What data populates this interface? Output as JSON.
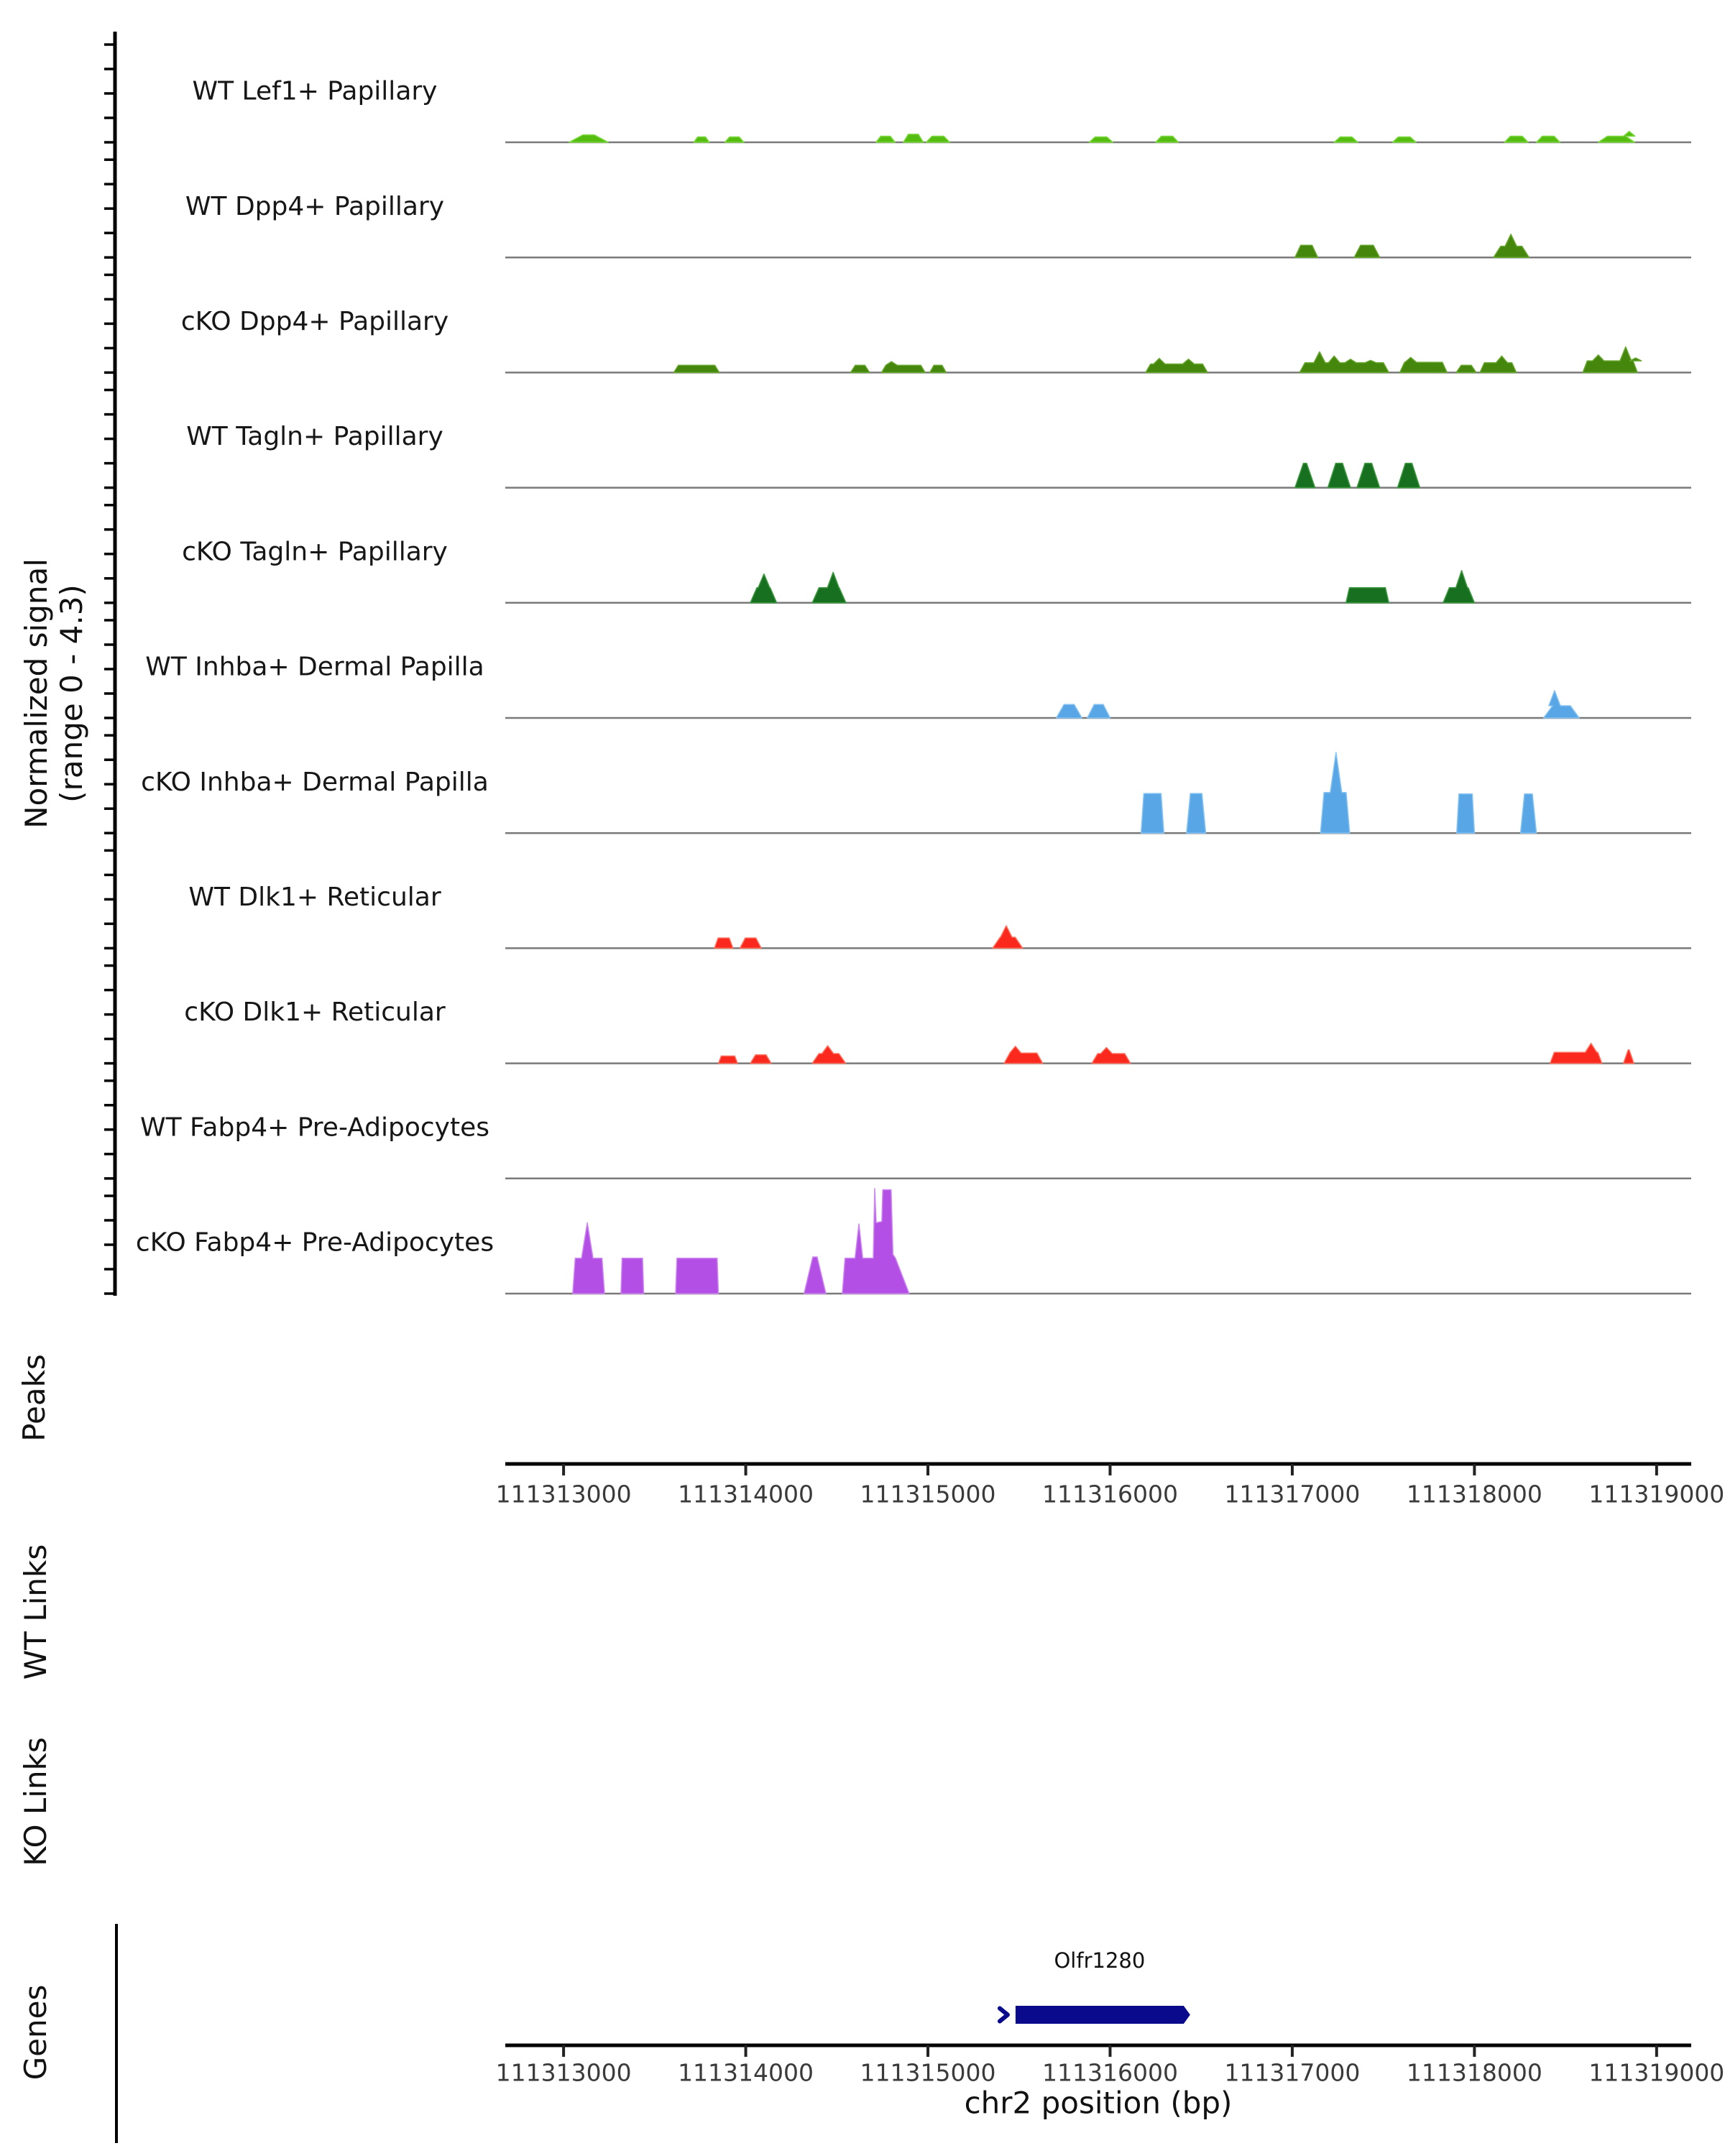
{
  "figure": {
    "y_axis_label_line1": "Normalized signal",
    "y_axis_label_line2": "(range 0 - 4.3)",
    "sections": {
      "peaks": "Peaks",
      "wt_links": "WT Links",
      "ko_links": "KO Links",
      "genes": "Genes"
    }
  },
  "chart_data": {
    "type": "area",
    "title": "",
    "xlabel": "chr2 position (bp)",
    "ylabel": "Normalized signal (range 0 - 4.3)",
    "chromosome": "chr2",
    "x_range_bp": [
      111312680,
      111319190
    ],
    "y_range_per_track": [
      0,
      4.3
    ],
    "x_ticks": [
      111313000,
      111314000,
      111315000,
      111316000,
      111317000,
      111318000,
      111319000
    ],
    "y_ticks_per_track": [
      0,
      1,
      2,
      3,
      4
    ],
    "grid": false,
    "tracks": [
      {
        "label": "WT Lef1+ Papillary",
        "color": "#55bd0f",
        "edge": "#7ed943",
        "peaks": [
          {
            "s": 111313030,
            "e": 111313245,
            "h": 0.3,
            "inset": 0.35
          },
          {
            "s": 111313715,
            "e": 111313800,
            "h": 0.22
          },
          {
            "s": 111313885,
            "e": 111313990,
            "h": 0.22
          },
          {
            "s": 111314715,
            "e": 111314820,
            "h": 0.25
          },
          {
            "s": 111314865,
            "e": 111314975,
            "h": 0.33
          },
          {
            "s": 111314990,
            "e": 111315120,
            "h": 0.25
          },
          {
            "s": 111315885,
            "e": 111316015,
            "h": 0.22
          },
          {
            "s": 111316250,
            "e": 111316375,
            "h": 0.25
          },
          {
            "s": 111317230,
            "e": 111317360,
            "h": 0.22
          },
          {
            "s": 111317550,
            "e": 111317680,
            "h": 0.22
          },
          {
            "s": 111318165,
            "e": 111318295,
            "h": 0.25
          },
          {
            "s": 111318340,
            "e": 111318470,
            "h": 0.25
          },
          {
            "s": 111318680,
            "e": 111318880,
            "h": 0.25,
            "spikes": [
              [
                111318850,
                0.45
              ]
            ]
          }
        ]
      },
      {
        "label": "WT Dpp4+ Papillary",
        "color": "#45870d",
        "edge": "#69a832",
        "peaks": [
          {
            "s": 111317015,
            "e": 111317140,
            "h": 0.5
          },
          {
            "s": 111317340,
            "e": 111317480,
            "h": 0.5
          },
          {
            "s": 111318105,
            "e": 111318300,
            "h": 0.46,
            "inset": 0.2,
            "spikes": [
              [
                111318200,
                0.95
              ]
            ]
          }
        ]
      },
      {
        "label": "cKO Dpp4+ Papillary",
        "color": "#45870d",
        "edge": "#69a832",
        "peaks": [
          {
            "s": 111313605,
            "e": 111313855,
            "h": 0.3,
            "inset": 0.1
          },
          {
            "s": 111314575,
            "e": 111314680,
            "h": 0.3
          },
          {
            "s": 111314745,
            "e": 111314985,
            "h": 0.3,
            "inset": 0.1,
            "spikes": [
              [
                111314800,
                0.45
              ]
            ]
          },
          {
            "s": 111315010,
            "e": 111315100,
            "h": 0.3
          },
          {
            "s": 111316195,
            "e": 111316535,
            "h": 0.35,
            "inset": 0.08,
            "spikes": [
              [
                111316270,
                0.58
              ],
              [
                111316430,
                0.55
              ]
            ]
          },
          {
            "s": 111317040,
            "e": 111317530,
            "h": 0.4,
            "inset": 0.06,
            "spikes": [
              [
                111317150,
                0.85
              ],
              [
                111317230,
                0.68
              ],
              [
                111317320,
                0.55
              ],
              [
                111317430,
                0.5
              ]
            ]
          },
          {
            "s": 111317590,
            "e": 111317850,
            "h": 0.42,
            "inset": 0.1,
            "spikes": [
              [
                111317650,
                0.62
              ]
            ]
          },
          {
            "s": 111317900,
            "e": 111318010,
            "h": 0.3
          },
          {
            "s": 111318030,
            "e": 111318230,
            "h": 0.4,
            "inset": 0.12,
            "spikes": [
              [
                111318150,
                0.68
              ]
            ]
          },
          {
            "s": 111318595,
            "e": 111318895,
            "h": 0.48,
            "inset": 0.08,
            "spikes": [
              [
                111318680,
                0.72
              ],
              [
                111318830,
                1.05
              ],
              [
                111318885,
                0.6
              ]
            ]
          }
        ]
      },
      {
        "label": "WT Tagln+ Papillary",
        "color": "#17701f",
        "edge": "#3f9a42",
        "peaks": [
          {
            "s": 111317015,
            "e": 111317125,
            "h": 1.0,
            "inset": 0.42
          },
          {
            "s": 111317195,
            "e": 111317320,
            "h": 1.0,
            "inset": 0.35
          },
          {
            "s": 111317355,
            "e": 111317480,
            "h": 1.0,
            "inset": 0.35
          },
          {
            "s": 111317578,
            "e": 111317700,
            "h": 1.0,
            "inset": 0.35
          }
        ]
      },
      {
        "label": "cKO Tagln+ Papillary",
        "color": "#17701f",
        "edge": "#3f9a42",
        "peaks": [
          {
            "s": 111314025,
            "e": 111314170,
            "h": 0.62,
            "inset": 0.25,
            "spikes": [
              [
                111314100,
                1.18
              ]
            ]
          },
          {
            "s": 111314365,
            "e": 111314550,
            "h": 0.62,
            "inset": 0.2,
            "spikes": [
              [
                111314480,
                1.25
              ]
            ]
          },
          {
            "s": 111317295,
            "e": 111317530,
            "h": 0.62,
            "inset": 0.08
          },
          {
            "s": 111317828,
            "e": 111318000,
            "h": 0.62,
            "inset": 0.2,
            "spikes": [
              [
                111317930,
                1.32
              ]
            ]
          }
        ]
      },
      {
        "label": "WT Inhba+ Dermal Papilla",
        "color": "#58a6e6",
        "edge": "#86c3f2",
        "peaks": [
          {
            "s": 111315705,
            "e": 111315845,
            "h": 0.55,
            "inset": 0.3
          },
          {
            "s": 111315875,
            "e": 111316000,
            "h": 0.55,
            "inset": 0.3
          },
          {
            "s": 111318380,
            "e": 111318575,
            "h": 0.5,
            "inset": 0.25,
            "spikes": [
              [
                111318440,
                1.12
              ]
            ]
          }
        ]
      },
      {
        "label": "cKO Inhba+ Dermal Papilla",
        "color": "#58a6e6",
        "edge": "#86c3f2",
        "peaks": [
          {
            "s": 111316170,
            "e": 111316295,
            "h": 1.62,
            "inset": 0.12
          },
          {
            "s": 111316420,
            "e": 111316525,
            "h": 1.62,
            "inset": 0.2
          },
          {
            "s": 111317155,
            "e": 111317315,
            "h": 1.66,
            "inset": 0.12,
            "spikes": [
              [
                111317240,
                3.3
              ]
            ]
          },
          {
            "s": 111317903,
            "e": 111318000,
            "h": 1.6,
            "inset": 0.12
          },
          {
            "s": 111318253,
            "e": 111318340,
            "h": 1.6,
            "inset": 0.25
          }
        ]
      },
      {
        "label": "WT Dlk1+ Reticular",
        "color": "#fb281e",
        "edge": "#ff7361",
        "peaks": [
          {
            "s": 111313828,
            "e": 111313930,
            "h": 0.42,
            "inset": 0.2
          },
          {
            "s": 111313968,
            "e": 111314085,
            "h": 0.42,
            "inset": 0.25
          },
          {
            "s": 111315355,
            "e": 111315520,
            "h": 0.45,
            "inset": 0.25,
            "spikes": [
              [
                111315430,
                0.92
              ]
            ]
          }
        ]
      },
      {
        "label": "cKO Dlk1+ Reticular",
        "color": "#fb281e",
        "edge": "#ff7361",
        "peaks": [
          {
            "s": 111313850,
            "e": 111313955,
            "h": 0.3,
            "inset": 0.15
          },
          {
            "s": 111314025,
            "e": 111314140,
            "h": 0.35,
            "inset": 0.25
          },
          {
            "s": 111314365,
            "e": 111314548,
            "h": 0.4,
            "inset": 0.2,
            "spikes": [
              [
                111314450,
                0.72
              ]
            ]
          },
          {
            "s": 111315418,
            "e": 111315630,
            "h": 0.42,
            "inset": 0.15,
            "spikes": [
              [
                111315480,
                0.7
              ]
            ]
          },
          {
            "s": 111315900,
            "e": 111316112,
            "h": 0.4,
            "inset": 0.15,
            "spikes": [
              [
                111315980,
                0.65
              ]
            ]
          },
          {
            "s": 111318415,
            "e": 111318700,
            "h": 0.45,
            "inset": 0.08,
            "spikes": [
              [
                111318640,
                0.82
              ]
            ]
          },
          {
            "s": 111318818,
            "e": 111318875,
            "h": 0.55,
            "inset": 0.45
          }
        ]
      },
      {
        "label": "WT Fabp4+ Pre-Adipocytes",
        "color": "#b44fe6",
        "edge": "#cd87f0",
        "peaks": []
      },
      {
        "label": "cKO Fabp4+ Pre-Adipocytes",
        "color": "#b44fe6",
        "edge": "#cd87f0",
        "peaks": [
          {
            "s": 111313050,
            "e": 111313225,
            "h": 1.45,
            "inset": 0.08,
            "spikes": [
              [
                111313130,
                2.9
              ]
            ]
          },
          {
            "s": 111313315,
            "e": 111313440,
            "h": 1.45,
            "inset": 0.05
          },
          {
            "s": 111313615,
            "e": 111313850,
            "h": 1.45,
            "inset": 0.03
          },
          {
            "s": 111314320,
            "e": 111314440,
            "h": 1.5,
            "inset": 0.4
          },
          {
            "poly": [
              [
                111314530,
                0
              ],
              [
                111314545,
                1.45
              ],
              [
                111314600,
                1.45
              ],
              [
                111314621,
                2.85
              ],
              [
                111314642,
                1.45
              ],
              [
                111314700,
                1.45
              ],
              [
                111314708,
                4.3
              ],
              [
                111314716,
                2.9
              ],
              [
                111314747,
                2.95
              ],
              [
                111314752,
                4.25
              ],
              [
                111314798,
                4.25
              ],
              [
                111314808,
                1.6
              ],
              [
                111314822,
                1.45
              ],
              [
                111314897,
                0
              ]
            ]
          }
        ]
      }
    ],
    "peaks_track": {
      "label": "Peaks",
      "features": []
    },
    "links_tracks": [
      {
        "label": "WT Links",
        "links": []
      },
      {
        "label": "KO Links",
        "links": []
      }
    ],
    "genes": [
      {
        "name": "Olfr1280",
        "start": 111315481,
        "end": 111316404,
        "strand": "+",
        "color": "#0a0a8c"
      }
    ]
  }
}
